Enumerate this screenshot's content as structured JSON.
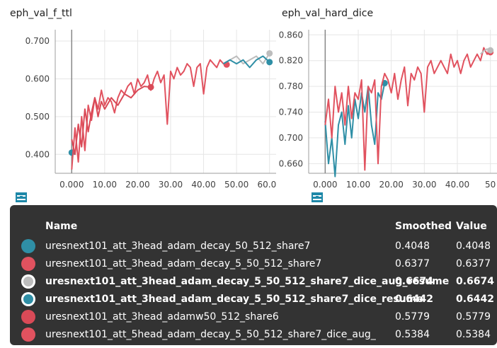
{
  "charts": {
    "left": {
      "title": "eph_val_f_ttl",
      "y_ticks": [
        "0.700",
        "0.600",
        "0.500",
        "0.400"
      ],
      "x_ticks": [
        "0.000",
        "10.00",
        "20.00",
        "30.00",
        "40.00",
        "50.00",
        "60.00"
      ]
    },
    "right": {
      "title": "eph_val_hard_dice",
      "y_ticks": [
        "0.860",
        "0.820",
        "0.780",
        "0.740",
        "0.700",
        "0.660"
      ],
      "x_ticks": [
        "0.000",
        "10.00",
        "20.00",
        "30.00",
        "40.00",
        "50"
      ]
    }
  },
  "toolbar_icons": [
    "fullscreen-icon",
    "data-table-icon",
    "fit-domain-icon"
  ],
  "tooltip": {
    "headers": {
      "name": "Name",
      "smoothed": "Smoothed",
      "value": "Value"
    },
    "rows": [
      {
        "name": "uresnext101_att_3head_adam_decay_50_512_share7",
        "smoothed": "0.4048",
        "value": "0.4048",
        "color": "#2f8fa6",
        "bold": false
      },
      {
        "name": "uresnext101_att_3head_adam_decay_5_50_512_share7",
        "smoothed": "0.6377",
        "value": "0.6377",
        "color": "#e1525f",
        "bold": false
      },
      {
        "name": "uresnext101_att_3head_adam_decay_5_50_512_share7_dice_aug_resume",
        "smoothed": "0.6674",
        "value": "0.6674",
        "color": "#bdbdbd",
        "bold": true
      },
      {
        "name": "uresnext101_att_3head_adam_decay_5_50_512_share7_dice_resume",
        "smoothed": "0.6442",
        "value": "0.6442",
        "color": "#2f8fa6",
        "bold": true
      },
      {
        "name": "uresnext101_att_3head_adamw50_512_share6",
        "smoothed": "0.5779",
        "value": "0.5779",
        "color": "#d94a57",
        "bold": false
      },
      {
        "name": "uresnext101_att_5head_adam_decay_5_50_512_share7_dice_aug_",
        "smoothed": "0.5384",
        "value": "0.5384",
        "color": "#e1525f",
        "bold": false
      }
    ]
  },
  "chart_data": [
    {
      "type": "line",
      "title": "eph_val_f_ttl",
      "ylim": [
        0.35,
        0.73
      ],
      "xlim": [
        -5,
        62
      ],
      "series": [
        {
          "color": "#2f8fa6",
          "x": [
            0
          ],
          "y": [
            0.4048
          ]
        },
        {
          "color": "#e1525f",
          "x": [
            0,
            1,
            2,
            3,
            4,
            5,
            6,
            7,
            8,
            9,
            10,
            11,
            12,
            13,
            14,
            15,
            16,
            17,
            18,
            19,
            20,
            21,
            22,
            23,
            24,
            25,
            26,
            27,
            28,
            29,
            30,
            31,
            32,
            33,
            34,
            35,
            36,
            37,
            38,
            39,
            40,
            41,
            42,
            43,
            44,
            45,
            46,
            47
          ],
          "y": [
            0.36,
            0.47,
            0.38,
            0.5,
            0.41,
            0.53,
            0.49,
            0.55,
            0.52,
            0.57,
            0.53,
            0.55,
            0.54,
            0.51,
            0.55,
            0.57,
            0.56,
            0.58,
            0.59,
            0.56,
            0.6,
            0.58,
            0.59,
            0.61,
            0.57,
            0.6,
            0.62,
            0.59,
            0.61,
            0.48,
            0.62,
            0.6,
            0.63,
            0.61,
            0.62,
            0.64,
            0.63,
            0.58,
            0.63,
            0.64,
            0.56,
            0.63,
            0.65,
            0.64,
            0.63,
            0.65,
            0.64,
            0.6377
          ]
        },
        {
          "color": "#d94a57",
          "x": [
            0,
            1,
            2,
            3,
            4,
            5,
            6,
            7,
            8,
            9,
            10,
            12,
            14,
            16,
            18,
            20,
            22,
            24
          ],
          "y": [
            0.44,
            0.4,
            0.48,
            0.42,
            0.52,
            0.46,
            0.51,
            0.55,
            0.5,
            0.54,
            0.52,
            0.55,
            0.53,
            0.56,
            0.55,
            0.57,
            0.58,
            0.5779
          ]
        },
        {
          "color": "#bdbdbd",
          "x": [
            46,
            48,
            50,
            52,
            54,
            56,
            58,
            60
          ],
          "y": [
            0.64,
            0.65,
            0.66,
            0.64,
            0.65,
            0.66,
            0.64,
            0.6674
          ]
        },
        {
          "color": "#2f8fa6",
          "x": [
            46,
            48,
            50,
            52,
            54,
            56,
            58,
            60
          ],
          "y": [
            0.64,
            0.65,
            0.64,
            0.65,
            0.63,
            0.65,
            0.66,
            0.6442
          ]
        }
      ]
    },
    {
      "type": "line",
      "title": "eph_val_hard_dice",
      "ylim": [
        0.645,
        0.868
      ],
      "xlim": [
        -5,
        52
      ],
      "series": [
        {
          "color": "#2f8fa6",
          "x": [
            0,
            1,
            2,
            3,
            4,
            5,
            6,
            7,
            8,
            9,
            10,
            11,
            12,
            13,
            14,
            15,
            16,
            17,
            18
          ],
          "y": [
            0.726,
            0.66,
            0.7,
            0.64,
            0.72,
            0.74,
            0.69,
            0.75,
            0.7,
            0.76,
            0.73,
            0.77,
            0.74,
            0.78,
            0.72,
            0.69,
            0.77,
            0.76,
            0.785
          ]
        },
        {
          "color": "#e1525f",
          "x": [
            0,
            1,
            2,
            3,
            4,
            5,
            6,
            7,
            8,
            9,
            10,
            11,
            12,
            13,
            14,
            15,
            16,
            17,
            18,
            19,
            20,
            21,
            22,
            23,
            24,
            25,
            26,
            27,
            28,
            29,
            30,
            31,
            32,
            33,
            34,
            35,
            36,
            37,
            38,
            39,
            40,
            41,
            42,
            43,
            44,
            45,
            46,
            47,
            48,
            49,
            50
          ],
          "y": [
            0.72,
            0.76,
            0.7,
            0.78,
            0.74,
            0.77,
            0.72,
            0.78,
            0.73,
            0.77,
            0.76,
            0.79,
            0.65,
            0.78,
            0.77,
            0.79,
            0.66,
            0.78,
            0.8,
            0.79,
            0.77,
            0.8,
            0.76,
            0.79,
            0.81,
            0.75,
            0.8,
            0.79,
            0.81,
            0.8,
            0.74,
            0.81,
            0.82,
            0.8,
            0.81,
            0.82,
            0.81,
            0.8,
            0.83,
            0.81,
            0.82,
            0.8,
            0.82,
            0.83,
            0.81,
            0.82,
            0.83,
            0.82,
            0.84,
            0.83,
            0.833
          ]
        },
        {
          "color": "#bdbdbd",
          "x": [
            47,
            48,
            49,
            50
          ],
          "y": [
            0.83,
            0.835,
            0.838,
            0.836
          ]
        }
      ]
    }
  ]
}
